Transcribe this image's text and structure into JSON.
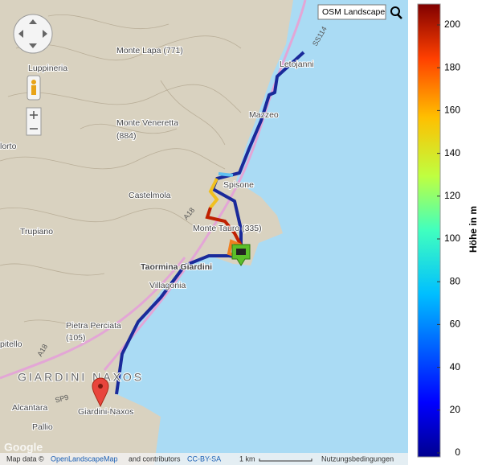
{
  "map": {
    "layer_button": "OSM Landscape",
    "labels": [
      "Monte Lapa (771)",
      "Luppineria",
      "Monte Veneretta",
      "(884)",
      "Letojanni",
      "Mazzeo",
      "Spisone",
      "Castelmola",
      "Trupiano",
      "Monte Tauro (335)",
      "Taormina Giardini",
      "Villagonia",
      "Pietra Perciata",
      "(105)",
      "GIARDINI NAXOS",
      "Giardini-Naxos",
      "Alcantara",
      "Pallio",
      "lorto",
      "pitello",
      "SS114",
      "A18",
      "A18",
      "SP9"
    ],
    "attribution": {
      "prefix": "Map data ©",
      "source": "OpenLandscapeMap",
      "middle": "and contributors",
      "license": "CC-BY-SA"
    },
    "scale": "1 km",
    "terms": "Nutzungsbedingungen",
    "logo": "Google"
  },
  "colorbar": {
    "label": "Höhe in m",
    "ticks": [
      0,
      20,
      40,
      60,
      80,
      100,
      120,
      140,
      160,
      180,
      200
    ]
  }
}
